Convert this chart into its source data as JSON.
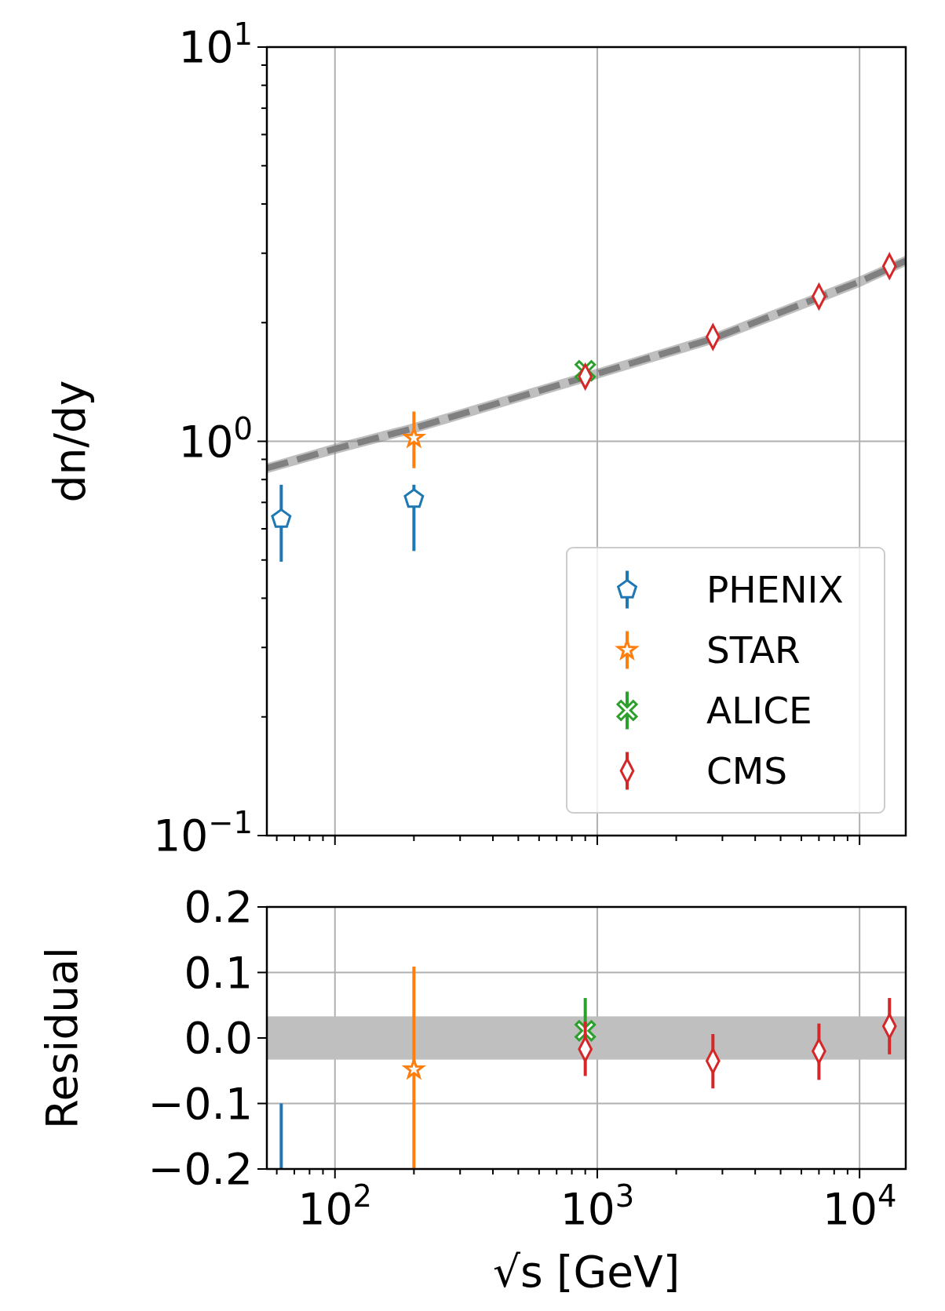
{
  "chart_data": [
    {
      "type": "scatter",
      "ylabel": "dn/dy",
      "log": "xy",
      "grid": true,
      "legend": "bottom right",
      "tick_labels": "y",
      "xlim": [
        55,
        15000
      ],
      "xticks": [
        {
          "value": 60,
          "label": null
        },
        {
          "value": 70,
          "label": null
        },
        {
          "value": 80,
          "label": null
        },
        {
          "value": 90,
          "label": null
        },
        {
          "value": 100,
          "label": null
        },
        {
          "value": 200,
          "label": null
        },
        {
          "value": 300,
          "label": null
        },
        {
          "value": 400,
          "label": null
        },
        {
          "value": 500,
          "label": null
        },
        {
          "value": 600,
          "label": null
        },
        {
          "value": 700,
          "label": null
        },
        {
          "value": 800,
          "label": null
        },
        {
          "value": 900,
          "label": null
        },
        {
          "value": 1000,
          "label": null
        },
        {
          "value": 2000,
          "label": null
        },
        {
          "value": 3000,
          "label": null
        },
        {
          "value": 4000,
          "label": null
        },
        {
          "value": 5000,
          "label": null
        },
        {
          "value": 6000,
          "label": null
        },
        {
          "value": 7000,
          "label": null
        },
        {
          "value": 8000,
          "label": null
        },
        {
          "value": 9000,
          "label": null
        },
        {
          "value": 10000,
          "label": null
        }
      ],
      "ylim": [
        0.1,
        10
      ],
      "yticks": [
        {
          "value": 0.1,
          "label": "10$^{−1}$"
        },
        {
          "value": 0.2,
          "label": null
        },
        {
          "value": 0.3,
          "label": null
        },
        {
          "value": 0.4,
          "label": null
        },
        {
          "value": 0.5,
          "label": null
        },
        {
          "value": 0.6,
          "label": null
        },
        {
          "value": 0.7,
          "label": null
        },
        {
          "value": 0.8,
          "label": null
        },
        {
          "value": 0.9,
          "label": null
        },
        {
          "value": 1,
          "label": "10$^{0}$"
        },
        {
          "value": 2,
          "label": null
        },
        {
          "value": 3,
          "label": null
        },
        {
          "value": 4,
          "label": null
        },
        {
          "value": 5,
          "label": null
        },
        {
          "value": 6,
          "label": null
        },
        {
          "value": 7,
          "label": null
        },
        {
          "value": 8,
          "label": null
        },
        {
          "value": 9,
          "label": null
        },
        {
          "value": 10,
          "label": "10$^{1}$"
        }
      ],
      "series": [
        {
          "type": "line",
          "color": "#808080",
          "line_style": "dashed",
          "x": [
            55,
            100,
            200,
            1000,
            2750,
            10000,
            15000
          ],
          "values": [
            0.855,
            0.957,
            1.08,
            1.485,
            1.82,
            2.54,
            2.87
          ],
          "lower": [
            0.83,
            0.928,
            1.048,
            1.44,
            1.765,
            2.46,
            2.78
          ],
          "upper": [
            0.88,
            0.986,
            1.112,
            1.53,
            1.875,
            2.62,
            2.96
          ]
        },
        {
          "name": "PHENIX",
          "color": "#1f77b4",
          "x": [
            62.4,
            200
          ],
          "values": [
            0.635,
            0.714
          ],
          "errors": [
            [
              0.495,
              0.776
            ],
            [
              0.527,
              0.776
            ]
          ]
        },
        {
          "name": "STAR",
          "color": "#ff7f0e",
          "marker": "star",
          "x": [
            200
          ],
          "values": [
            1.02
          ],
          "errors": [
            [
              0.855,
              1.19
            ]
          ]
        },
        {
          "name": "ALICE",
          "color": "#2ca02c",
          "marker": "cross",
          "x": [
            900
          ],
          "values": [
            1.51
          ],
          "errors": [
            null
          ]
        },
        {
          "name": "CMS",
          "color": "#d62728",
          "marker": "diamond",
          "x": [
            900,
            2760,
            7000,
            13000
          ],
          "values": [
            1.46,
            1.84,
            2.33,
            2.78
          ],
          "errors": [
            null,
            [
              1.77,
              1.91
            ],
            [
              2.24,
              2.42
            ],
            [
              2.67,
              2.89
            ]
          ]
        }
      ]
    },
    {
      "type": "scatter",
      "xlabel": "√s [GeV]",
      "ylabel": "Residual",
      "log": "x",
      "grid": true,
      "xlim": [
        55,
        15000
      ],
      "xticks": [
        {
          "value": 60,
          "label": null
        },
        {
          "value": 70,
          "label": null
        },
        {
          "value": 80,
          "label": null
        },
        {
          "value": 90,
          "label": null
        },
        {
          "value": 100,
          "label": "10$^{2}$"
        },
        {
          "value": 200,
          "label": null
        },
        {
          "value": 300,
          "label": null
        },
        {
          "value": 400,
          "label": null
        },
        {
          "value": 500,
          "label": null
        },
        {
          "value": 600,
          "label": null
        },
        {
          "value": 700,
          "label": null
        },
        {
          "value": 800,
          "label": null
        },
        {
          "value": 900,
          "label": null
        },
        {
          "value": 1000,
          "label": "10$^{3}$"
        },
        {
          "value": 2000,
          "label": null
        },
        {
          "value": 3000,
          "label": null
        },
        {
          "value": 4000,
          "label": null
        },
        {
          "value": 5000,
          "label": null
        },
        {
          "value": 6000,
          "label": null
        },
        {
          "value": 7000,
          "label": null
        },
        {
          "value": 8000,
          "label": null
        },
        {
          "value": 9000,
          "label": null
        },
        {
          "value": 10000,
          "label": "10$^{4}$"
        }
      ],
      "ylim": [
        -0.2,
        0.2
      ],
      "yticks": [
        0.2,
        0.1,
        {
          "value": 0,
          "label": "0.0"
        },
        {
          "value": -0.1,
          "label": "−0.1"
        },
        {
          "value": -0.2,
          "label": "−0.2"
        }
      ],
      "bands": [
        {
          "axis": "y",
          "from": -0.033,
          "to": 0.033,
          "color": "#bfbfbf"
        }
      ],
      "series": [
        {
          "type": "line",
          "color": "#1f77b4",
          "line_style": "solid",
          "x": [
            62.4,
            62.4
          ],
          "values": [
            -0.2,
            -0.1
          ]
        },
        {
          "color": "#ff7f0e",
          "marker": "star",
          "x": [
            200
          ],
          "values": [
            -0.048
          ],
          "errors": [
            [
              -0.21,
              0.109
            ]
          ]
        },
        {
          "color": "#2ca02c",
          "marker": "cross",
          "x": [
            900
          ],
          "values": [
            0.011
          ],
          "errors": [
            [
              -0.013,
              0.061
            ]
          ]
        },
        {
          "color": "#d62728",
          "marker": "diamond",
          "x": [
            900,
            2760,
            7000,
            13000
          ],
          "values": [
            -0.017,
            -0.035,
            -0.02,
            0.018
          ],
          "errors": [
            [
              -0.058,
              0.025
            ],
            [
              -0.077,
              0.006
            ],
            [
              -0.064,
              0.022
            ],
            [
              -0.025,
              0.061
            ]
          ]
        }
      ]
    }
  ]
}
